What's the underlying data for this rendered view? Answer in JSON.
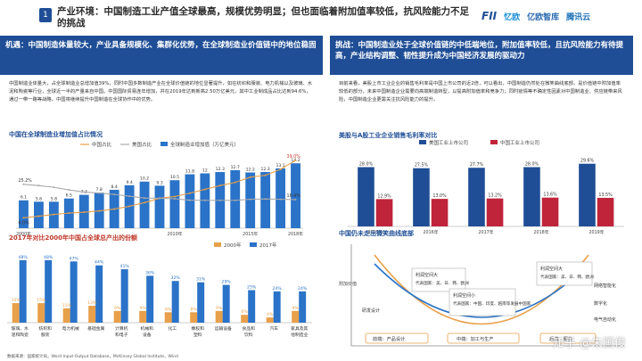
{
  "header": {
    "badge": "1",
    "title": "产业环境：中国制造工业产值全球最高，规模优势明显；但也面临着附加值率较低，抗风险能力不足的挑战",
    "logos": [
      "FII",
      "忆欧",
      "亿欧智库",
      "腾讯云"
    ]
  },
  "left": {
    "box_title": "机遇：中国制造体量较大，产业具备规模化、集群化优势，在全球制造业价值链中的地位稳固",
    "body": "中国制造业体量大，占全球制造业总增加值39%，同时中国多数制造产业在全球价值链的地位显著提升，如在纺织和服装、电力机械以及玻璃、水泥和陶瓷等行业，全球近一半的产量来自中国。中国国际贸易连年增加，并在2019年达到新高2.50万亿美元，其中工业制成品占比达到94.6%，通过一带一路等战略，中国将继续提升中国制造在全球协作中的优势。",
    "chart1_title": "中国在全球制造业增加值占比情况",
    "chart2_title": "2017年对比2000年中国占全球总产出的份额",
    "source": "数据来源：国家统计局，Word Input-Output Database，McKinsey Global Institute，Wind"
  },
  "right": {
    "box_title": "挑战：中国制造业处于全球价值链的中低端地位，附加值率较低，且抗风险能力有待提高，产业结构调整、韧性提升成为中国经济发展的驱动力",
    "body": "目前来看，美股上市工业企业的销售毛利率是中国上市公司的近2倍，可以看出，中国制造仍然处在微笑曲线底部，是价值链中附加值率较低的部分，未来中国制造企业需要向高端制造转型，以提高附加值率和竞争力；同时疫情等不确定性因素对中国制造业、供应链带来风险，中国制造企业更需关注抗风险能力的提升。",
    "chart3_title": "美股与A股工业企业销售毛利率对比",
    "chart4_title": "中国仍未走出微笑曲线底部",
    "curve_labels": {
      "y_axis": "附加价值",
      "top_left": "利润空间大",
      "top_left2": "代表国家：美、日、韩、欧洲",
      "top_right": "利润空间大",
      "top_right2": "代表国家：美、日、韩、欧洲",
      "mid": "利润空间小",
      "mid2": "代表国家：中国、印度、越南等发展中国家",
      "left_item": "研发设计",
      "right_item1": "网络智能化",
      "right_item2": "数字化",
      "right_item3": "电气自动化",
      "bottom_left": "前端：产品设计",
      "bottom_mid": "中端：加工与生产",
      "bottom_right": "后端：服务"
    }
  },
  "watermark": "知乎 @朱国俊",
  "chart_data": [
    {
      "type": "bar",
      "title": "中国在全球制造业增加值占比情况",
      "legend": [
        "中国占比",
        "美国占比",
        "全球制造业增加值（万亿美元）"
      ],
      "categories": [
        "2000年",
        "2001",
        "2002",
        "2003",
        "2004",
        "2005",
        "2006",
        "2007",
        "2008",
        "2009",
        "2010年",
        "2011",
        "2012",
        "2013",
        "2014",
        "2015年",
        "2016",
        "2017",
        "2018年"
      ],
      "series": [
        {
          "name": "全球制造业增加值（万亿美元）",
          "values": [
            6.1,
            5.8,
            5.8,
            6.5,
            7.3,
            7.8,
            8.4,
            9.4,
            10.2,
            9.3,
            10.5,
            11.8,
            12.0,
            12.3,
            12.7,
            12.2,
            12.3,
            13.1,
            14.2
          ]
        },
        {
          "name": "中国占比",
          "values": [
            6.0,
            6.9,
            7.9,
            8.7,
            9.2,
            9.9,
            11.0,
            12.6,
            14.7,
            17.2,
            18.2,
            20.1,
            22.3,
            24.5,
            26.3,
            29.3,
            30.4,
            33.8,
            39.0
          ]
        },
        {
          "name": "美国占比",
          "values": [
            25.2,
            24.5,
            23.5,
            22.0,
            20.8,
            20.2,
            19.4,
            18.4,
            17.3,
            17.2,
            16.9,
            16.1,
            16.0,
            16.0,
            16.0,
            16.6,
            16.8,
            16.6,
            16.4
          ]
        }
      ],
      "value_labels": {
        "china_2000": "6.0%",
        "us_2000": "25.2%",
        "china_2018": "39.0%",
        "us_2018": "16.4%"
      }
    },
    {
      "type": "bar",
      "title": "2017年对比2000年中国占全球总产出的份额",
      "legend": [
        "2000年",
        "2017年"
      ],
      "categories": [
        "玻璃、水泥和陶瓷",
        "纺织和服装",
        "电力机械",
        "基础金属",
        "计算机和电子",
        "机械和设备",
        "化工",
        "橡胶和塑料",
        "运输设备",
        "食品和饮料",
        "汽车",
        "家具及其他制造业"
      ],
      "series": [
        {
          "name": "2000年",
          "values": [
            15,
            15,
            11,
            13,
            9,
            9,
            8,
            8,
            9,
            6,
            4,
            9
          ]
        },
        {
          "name": "2017年",
          "values": [
            48,
            48,
            47,
            44,
            41,
            36,
            32,
            31,
            29,
            25,
            24,
            24
          ]
        }
      ]
    },
    {
      "type": "bar",
      "title": "美股与A股工业企业销售毛利率对比",
      "legend": [
        "美国工业上市公司",
        "中国工业上市公司"
      ],
      "categories": [
        "2015年",
        "2016年",
        "2017年",
        "2018年",
        "2019年"
      ],
      "series": [
        {
          "name": "美国工业上市公司",
          "values": [
            28.0,
            27.5,
            27.7,
            28.0,
            29.6
          ]
        },
        {
          "name": "中国工业上市公司",
          "values": [
            12.9,
            13.0,
            13.2,
            13.6,
            13.5
          ]
        }
      ],
      "ylim": [
        0,
        32
      ]
    }
  ]
}
